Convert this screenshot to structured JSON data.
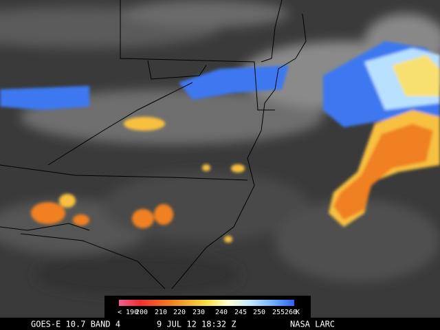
{
  "colorbar": {
    "labels": [
      "< 190",
      "200",
      "210",
      "220",
      "230",
      "240",
      "245",
      "250",
      "255",
      "260"
    ],
    "unit": "K"
  },
  "footer": {
    "satellite": "GOES-E 10.7 BAND 4",
    "timestamp": "9 JUL 12 18:32 Z",
    "credit": "NASA LARC"
  }
}
